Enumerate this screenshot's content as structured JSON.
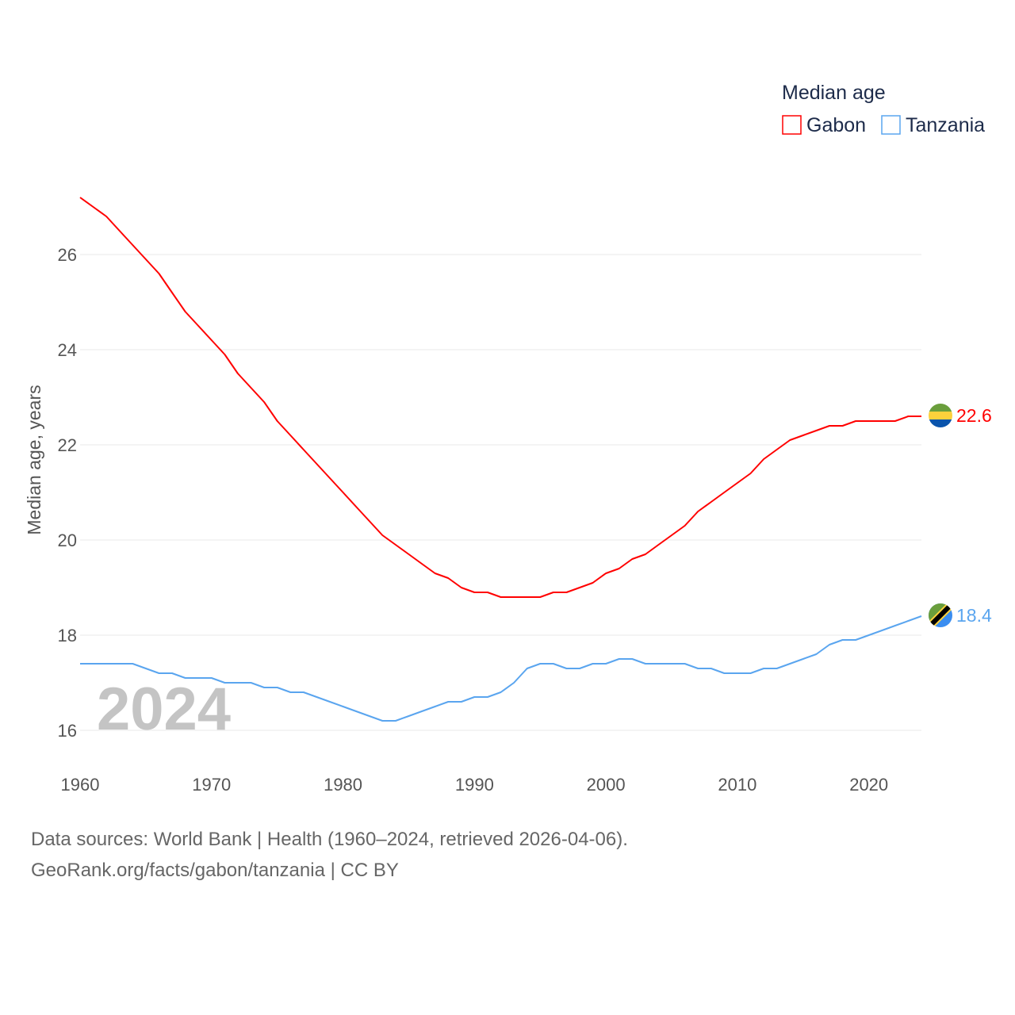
{
  "chart_data": {
    "type": "line",
    "title": "",
    "legend_title": "Median age",
    "legend_position": "top-right",
    "ylabel": "Median age, years",
    "xlabel": "",
    "xlim": [
      1960,
      2024
    ],
    "ylim": [
      15.4,
      27.6
    ],
    "xticks": [
      1960,
      1970,
      1980,
      1990,
      2000,
      2010,
      2020
    ],
    "yticks": [
      16,
      18,
      20,
      22,
      24,
      26
    ],
    "grid": true,
    "watermark_year": "2024",
    "x_start": 1960,
    "series": [
      {
        "name": "Gabon",
        "color": "#ff0000",
        "end_label": "22.6",
        "flag": "gabon-flag",
        "values": [
          27.2,
          27.0,
          26.8,
          26.5,
          26.2,
          25.9,
          25.6,
          25.2,
          24.8,
          24.5,
          24.2,
          23.9,
          23.5,
          23.2,
          22.9,
          22.5,
          22.2,
          21.9,
          21.6,
          21.3,
          21.0,
          20.7,
          20.4,
          20.1,
          19.9,
          19.7,
          19.5,
          19.3,
          19.2,
          19.0,
          18.9,
          18.9,
          18.8,
          18.8,
          18.8,
          18.8,
          18.9,
          18.9,
          19.0,
          19.1,
          19.3,
          19.4,
          19.6,
          19.7,
          19.9,
          20.1,
          20.3,
          20.6,
          20.8,
          21.0,
          21.2,
          21.4,
          21.7,
          21.9,
          22.1,
          22.2,
          22.3,
          22.4,
          22.4,
          22.5,
          22.5,
          22.5,
          22.5,
          22.6,
          22.6
        ]
      },
      {
        "name": "Tanzania",
        "color": "#5aa5ef",
        "end_label": "18.4",
        "flag": "tanzania-flag",
        "values": [
          17.4,
          17.4,
          17.4,
          17.4,
          17.4,
          17.3,
          17.2,
          17.2,
          17.1,
          17.1,
          17.1,
          17.0,
          17.0,
          17.0,
          16.9,
          16.9,
          16.8,
          16.8,
          16.7,
          16.6,
          16.5,
          16.4,
          16.3,
          16.2,
          16.2,
          16.3,
          16.4,
          16.5,
          16.6,
          16.6,
          16.7,
          16.7,
          16.8,
          17.0,
          17.3,
          17.4,
          17.4,
          17.3,
          17.3,
          17.4,
          17.4,
          17.5,
          17.5,
          17.4,
          17.4,
          17.4,
          17.4,
          17.3,
          17.3,
          17.2,
          17.2,
          17.2,
          17.3,
          17.3,
          17.4,
          17.5,
          17.6,
          17.8,
          17.9,
          17.9,
          18.0,
          18.1,
          18.2,
          18.3,
          18.4
        ]
      }
    ]
  },
  "footer": {
    "sources": "Data sources: World Bank | Health (1960–2024, retrieved 2026-04-06).",
    "credit": "GeoRank.org/facts/gabon/tanzania | CC BY"
  }
}
